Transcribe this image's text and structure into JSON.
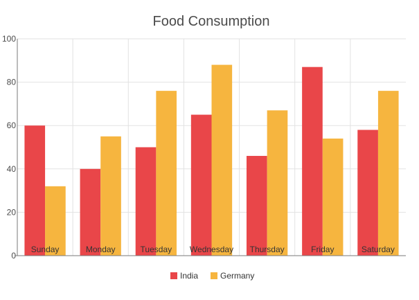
{
  "chart_data": {
    "type": "bar",
    "title": "Food Consumption",
    "xlabel": "",
    "ylabel": "",
    "categories": [
      "Sunday",
      "Monday",
      "Tuesday",
      "Wednesday",
      "Thursday",
      "Friday",
      "Saturday"
    ],
    "series": [
      {
        "name": "India",
        "color": "#e94649",
        "values": [
          60,
          40,
          50,
          65,
          46,
          87,
          58
        ]
      },
      {
        "name": "Germany",
        "color": "#f6b53f",
        "values": [
          32,
          55,
          76,
          88,
          67,
          54,
          76
        ]
      }
    ],
    "ylim": [
      0,
      100
    ],
    "yticks": [
      0,
      20,
      40,
      60,
      80,
      100
    ],
    "grid": true,
    "legend": "bottom-center"
  }
}
